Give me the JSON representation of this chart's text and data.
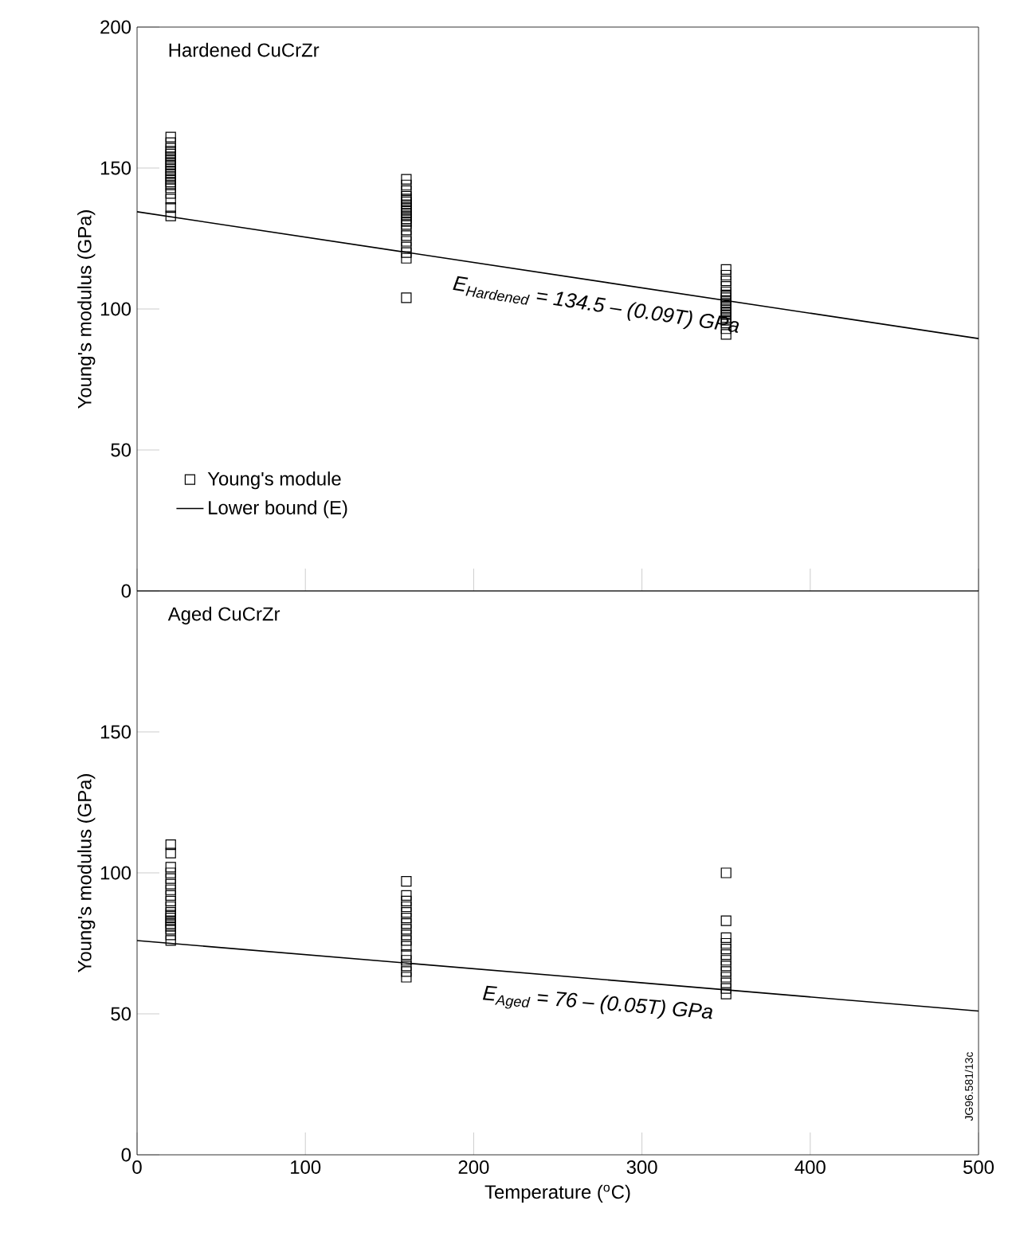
{
  "chart_data": [
    {
      "type": "scatter",
      "title": "Hardened CuCrZr",
      "ylabel": "Young's modulus (GPa)",
      "xlim": [
        0,
        500
      ],
      "ylim": [
        0,
        200
      ],
      "xticks": [
        0,
        100,
        200,
        300,
        400,
        500
      ],
      "yticks": [
        0,
        50,
        100,
        150,
        200
      ],
      "tick_labels": "y",
      "legend": "left",
      "annotations": [
        "E$_{Hardened}$ = 134.5 – (0.09T) GPa"
      ],
      "series": [
        {
          "name": "Young's module",
          "marker": "square",
          "color": "#000000",
          "x": [
            20,
            20,
            20,
            20,
            20,
            20,
            20,
            20,
            20,
            20,
            20,
            20,
            20,
            20,
            20,
            20,
            20,
            20,
            20,
            20,
            20,
            160,
            160,
            160,
            160,
            160,
            160,
            160,
            160,
            160,
            160,
            160,
            160,
            160,
            160,
            160,
            160,
            160,
            160,
            160,
            160,
            160,
            350,
            350,
            350,
            350,
            350,
            350,
            350,
            350,
            350,
            350,
            350,
            350,
            350,
            350,
            350,
            350,
            350,
            350
          ],
          "values": [
            133,
            136,
            139,
            141,
            143,
            144,
            145,
            146,
            147,
            148,
            149,
            150,
            151,
            152,
            153,
            154,
            155,
            156,
            157,
            159,
            161,
            104,
            118,
            120,
            122,
            124,
            126,
            128,
            130,
            131,
            132,
            133,
            134,
            135,
            136,
            137,
            138,
            139,
            140,
            142,
            144,
            146,
            91,
            93,
            95,
            96,
            97,
            98,
            99,
            100,
            101,
            102,
            103,
            104,
            105,
            106,
            108,
            110,
            112,
            114
          ]
        },
        {
          "name": "Lower bound (E)",
          "type": "line",
          "marker": "none",
          "line_style": "solid",
          "color": "#000000",
          "x": [
            0,
            500
          ],
          "values": [
            134.5,
            89.5
          ]
        }
      ]
    },
    {
      "type": "scatter",
      "title": "Aged CuCrZr",
      "xlabel": "Temperature ($^{o}$C)",
      "ylabel": "Young's modulus (GPa)",
      "xlim": [
        0,
        500
      ],
      "ylim": [
        0,
        200
      ],
      "xticks": [
        0,
        100,
        200,
        300,
        400,
        500
      ],
      "yticks": [
        0,
        50,
        100,
        150
      ],
      "annotations": [
        "E$_{Aged}$ = 76 – (0.05T) GPa",
        "JG96.581/13c"
      ],
      "series": [
        {
          "marker": "square",
          "color": "#000000",
          "x": [
            20,
            20,
            20,
            20,
            20,
            20,
            20,
            20,
            20,
            20,
            20,
            20,
            20,
            20,
            20,
            20,
            20,
            20,
            20,
            160,
            160,
            160,
            160,
            160,
            160,
            160,
            160,
            160,
            160,
            160,
            160,
            160,
            160,
            160,
            160,
            350,
            350,
            350,
            350,
            350,
            350,
            350,
            350,
            350,
            350,
            350,
            350,
            350
          ],
          "values": [
            110,
            107,
            102,
            100,
            98,
            96,
            94,
            92,
            90,
            88,
            86,
            85,
            84,
            83,
            82,
            81,
            80,
            78,
            76,
            97,
            92,
            90,
            88,
            86,
            84,
            82,
            80,
            78,
            76,
            74,
            71,
            69,
            67,
            65,
            63,
            100,
            83,
            77,
            75,
            73,
            71,
            69,
            67,
            65,
            63,
            61,
            59,
            57
          ]
        },
        {
          "type": "line",
          "marker": "none",
          "line_style": "solid",
          "color": "#000000",
          "x": [
            0,
            500
          ],
          "values": [
            76,
            51
          ]
        }
      ]
    }
  ]
}
